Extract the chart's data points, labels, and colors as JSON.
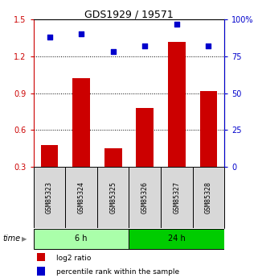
{
  "title": "GDS1929 / 19571",
  "samples": [
    "GSM85323",
    "GSM85324",
    "GSM85325",
    "GSM85326",
    "GSM85327",
    "GSM85328"
  ],
  "log2_ratio": [
    0.48,
    1.02,
    0.45,
    0.78,
    1.32,
    0.92
  ],
  "percentile_rank": [
    88,
    90,
    78,
    82,
    97,
    82
  ],
  "left_ylim": [
    0.3,
    1.5
  ],
  "right_ylim": [
    0,
    100
  ],
  "left_yticks": [
    0.3,
    0.6,
    0.9,
    1.2,
    1.5
  ],
  "right_yticks": [
    0,
    25,
    50,
    75,
    100
  ],
  "right_yticklabels": [
    "0",
    "25",
    "50",
    "75",
    "100%"
  ],
  "hlines": [
    0.6,
    0.9,
    1.2
  ],
  "bar_color": "#cc0000",
  "scatter_color": "#0000cc",
  "time_groups": [
    {
      "label": "6 h",
      "samples": [
        0,
        1,
        2
      ],
      "color": "#aaffaa"
    },
    {
      "label": "24 h",
      "samples": [
        3,
        4,
        5
      ],
      "color": "#00cc00"
    }
  ],
  "time_label": "time",
  "legend_bar_label": "log2 ratio",
  "legend_scatter_label": "percentile rank within the sample",
  "sample_bg_color": "#d8d8d8",
  "title_fontsize": 9,
  "tick_fontsize": 7,
  "sample_fontsize": 6,
  "time_fontsize": 7,
  "legend_fontsize": 6.5
}
